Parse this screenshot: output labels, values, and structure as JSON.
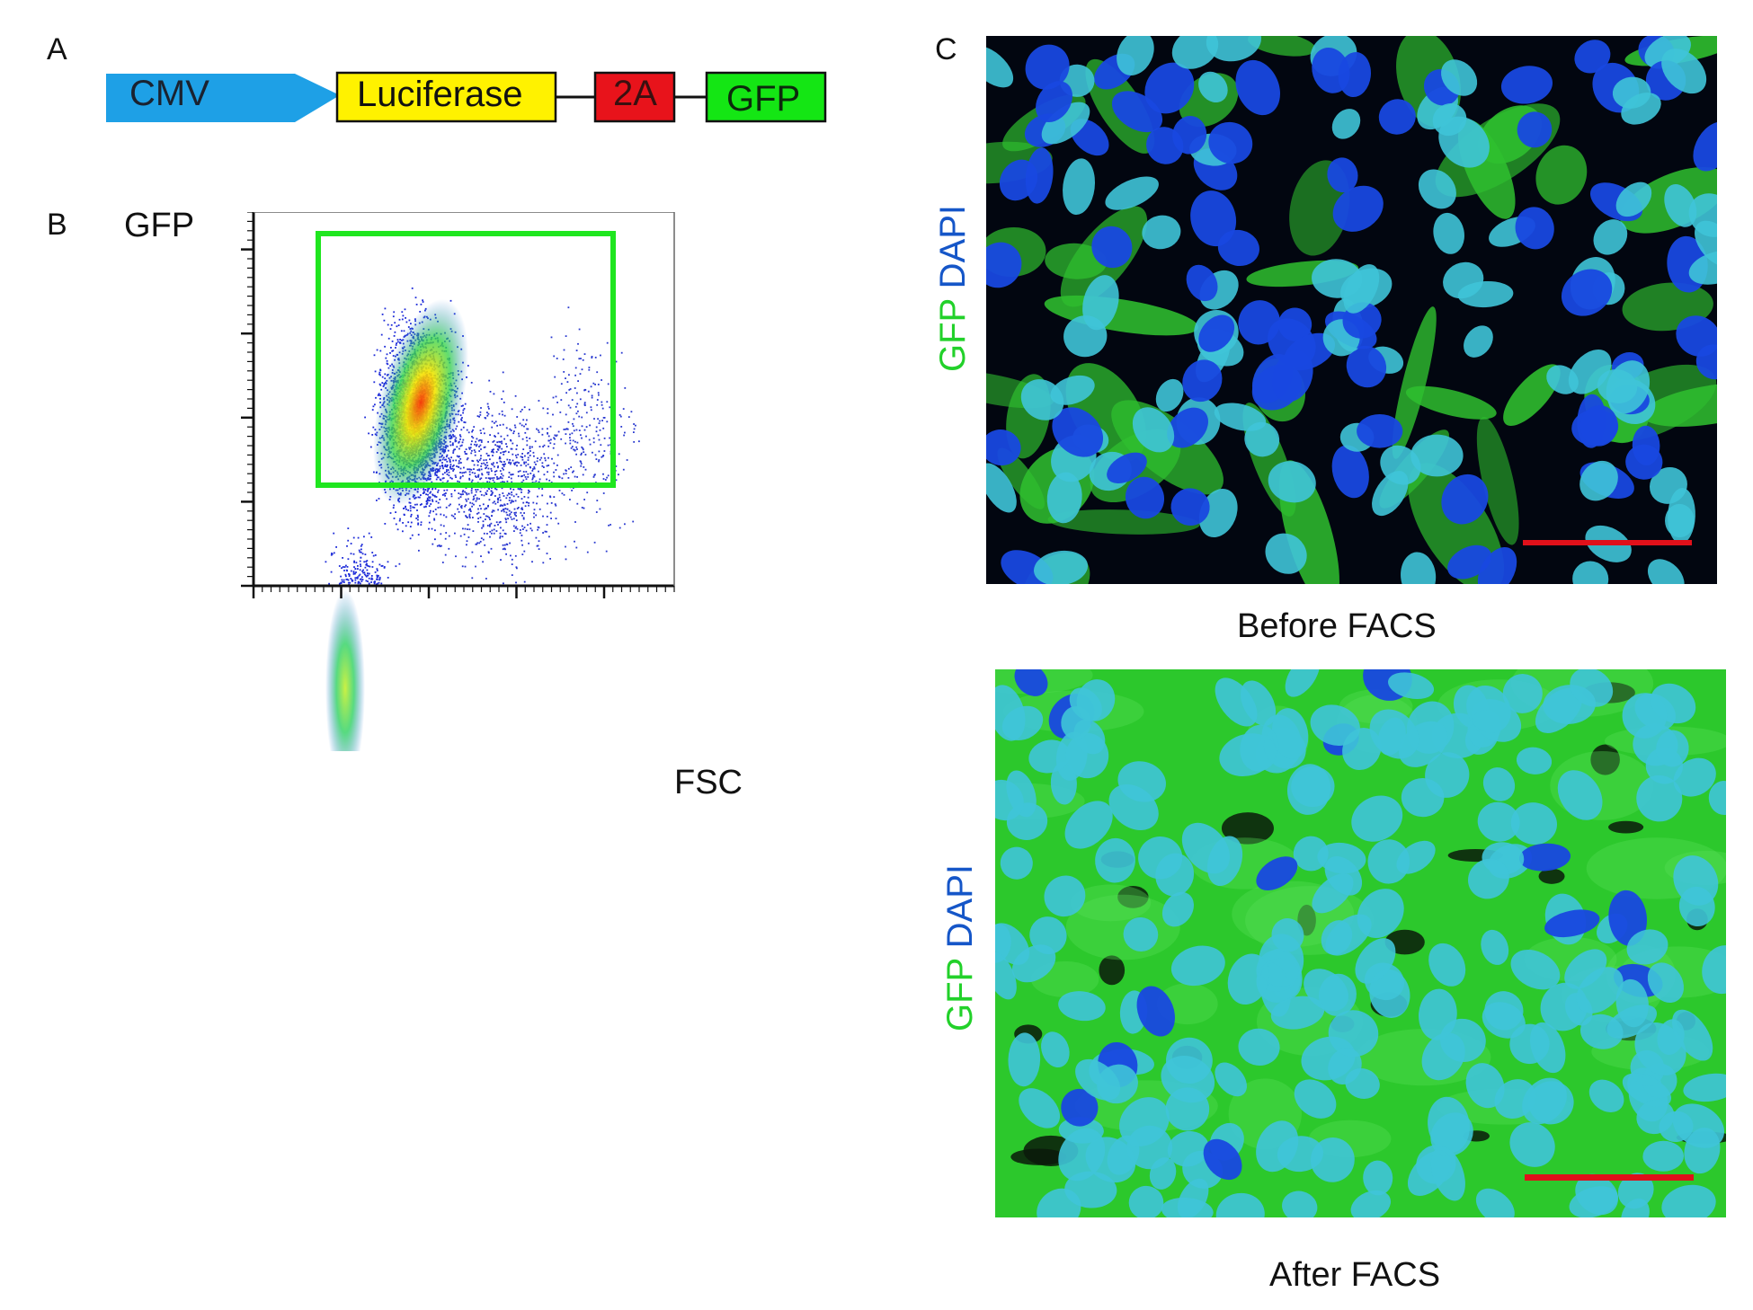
{
  "panels": {
    "a": {
      "letter": "A"
    },
    "b": {
      "letter": "B"
    },
    "c": {
      "letter": "C"
    }
  },
  "construct": {
    "promoter": "CMV",
    "gene": "Luciferase",
    "linker": "2A",
    "reporter": "GFP",
    "colors": {
      "promoter": "#1ea0e6",
      "gene": "#fff200",
      "linker": "#e8131b",
      "reporter": "#14e614"
    }
  },
  "flow": {
    "y_label": "GFP",
    "x_label": "FSC",
    "gate_color": "#1fe61f"
  },
  "microscopy": {
    "top": {
      "caption": "Before FACS",
      "stain_label_green": "GFP",
      "stain_label_blue": "DAPI"
    },
    "bottom": {
      "caption": "After FACS",
      "stain_label_green": "GFP",
      "stain_label_blue": "DAPI"
    },
    "colors": {
      "green": "#22d12a",
      "blue": "#1556c8",
      "scale_bar": "#e0101a"
    }
  }
}
